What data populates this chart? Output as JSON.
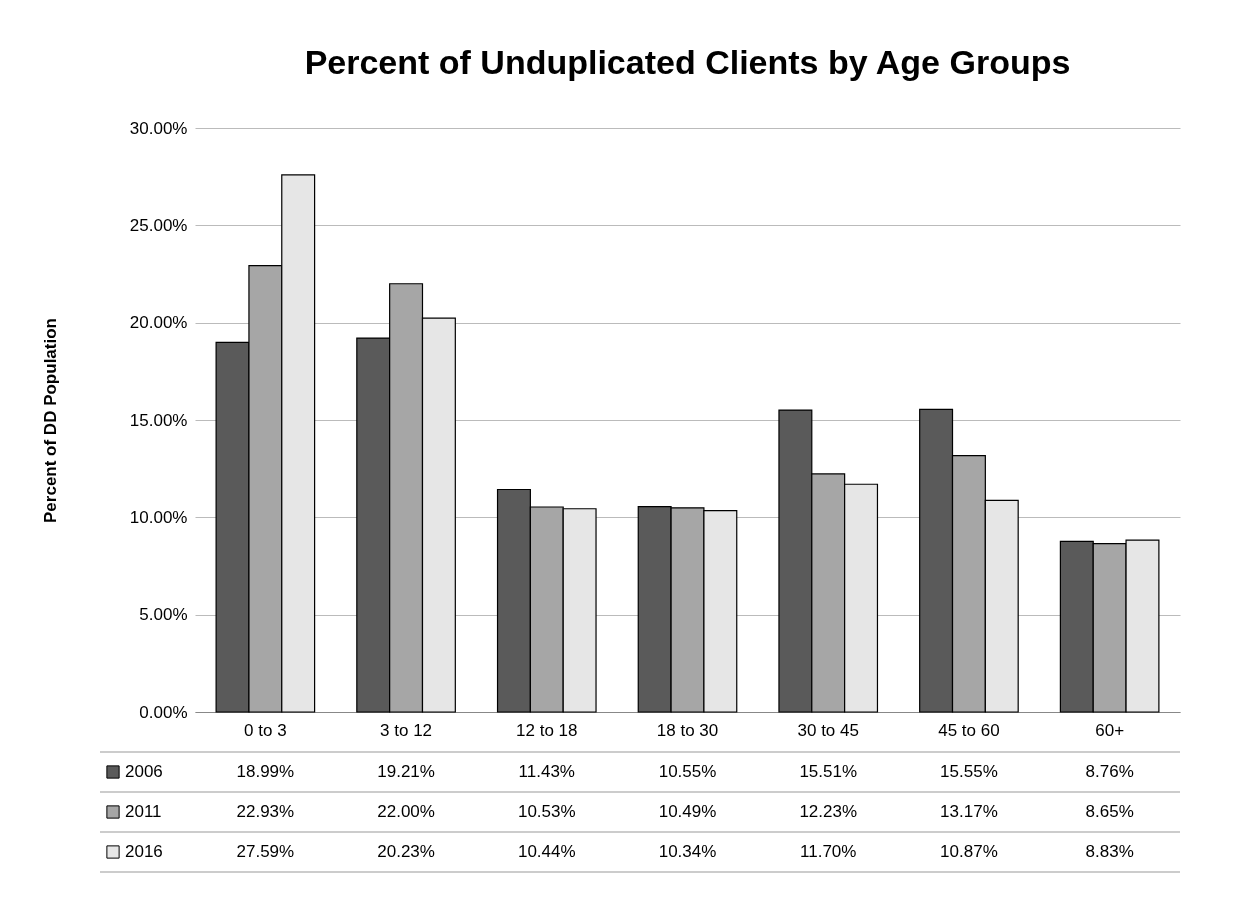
{
  "chart_data": {
    "type": "bar",
    "title": "Percent of Unduplicated Clients by Age Groups",
    "ylabel": "Percent of DD Population",
    "categories": [
      "0 to 3",
      "3 to 12",
      "12 to 18",
      "18 to 30",
      "30 to 45",
      "45 to 60",
      "60+"
    ],
    "series": [
      {
        "name": "2006",
        "color": "#5a5a5a",
        "values": [
          18.99,
          19.21,
          11.43,
          10.55,
          15.51,
          15.55,
          8.76
        ],
        "value_labels": [
          "18.99%",
          "19.21%",
          "11.43%",
          "10.55%",
          "15.51%",
          "15.55%",
          "8.76%"
        ]
      },
      {
        "name": "2011",
        "color": "#a6a6a6",
        "values": [
          22.93,
          22.0,
          10.53,
          10.49,
          12.23,
          13.17,
          8.65
        ],
        "value_labels": [
          "22.93%",
          "22.00%",
          "10.53%",
          "10.49%",
          "12.23%",
          "13.17%",
          "8.65%"
        ]
      },
      {
        "name": "2016",
        "color": "#e6e6e6",
        "values": [
          27.59,
          20.23,
          10.44,
          10.34,
          11.7,
          10.87,
          8.83
        ],
        "value_labels": [
          "27.59%",
          "20.23%",
          "10.44%",
          "10.34%",
          "11.70%",
          "10.87%",
          "8.83%"
        ]
      }
    ],
    "ylim": [
      0,
      30
    ],
    "yticks": [
      {
        "value": 0,
        "label": "0.00%"
      },
      {
        "value": 5,
        "label": "5.00%"
      },
      {
        "value": 10,
        "label": "10.00%"
      },
      {
        "value": 15,
        "label": "15.00%"
      },
      {
        "value": 20,
        "label": "20.00%"
      },
      {
        "value": 25,
        "label": "25.00%"
      },
      {
        "value": 30,
        "label": "30.00%"
      }
    ],
    "grid": "y",
    "legend": "bottom"
  }
}
